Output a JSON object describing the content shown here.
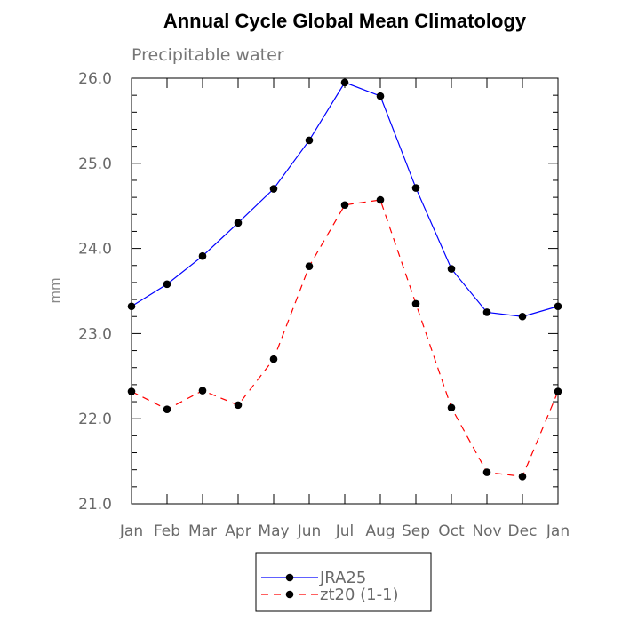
{
  "chart_data": {
    "type": "line",
    "title": "Annual Cycle Global Mean Climatology",
    "subtitle": "Precipitable water",
    "xlabel": "",
    "ylabel": "mm",
    "categories": [
      "Jan",
      "Feb",
      "Mar",
      "Apr",
      "May",
      "Jun",
      "Jul",
      "Aug",
      "Sep",
      "Oct",
      "Nov",
      "Dec",
      "Jan"
    ],
    "ylim": [
      21.0,
      26.0
    ],
    "yticks": [
      21.0,
      22.0,
      23.0,
      24.0,
      25.0,
      26.0
    ],
    "ytick_labels": [
      "21.0",
      "22.0",
      "23.0",
      "24.0",
      "25.0",
      "26.0"
    ],
    "grid": false,
    "legend_position": "bottom-center",
    "series": [
      {
        "name": "JRA25",
        "color": "#0000ff",
        "line_style": "solid",
        "marker": "filled-circle",
        "values": [
          23.32,
          23.58,
          23.91,
          24.3,
          24.7,
          25.27,
          25.95,
          25.79,
          24.71,
          23.76,
          23.25,
          23.2,
          23.32
        ]
      },
      {
        "name": "zt20 (1-1)",
        "color": "#ff0000",
        "line_style": "dashed",
        "marker": "filled-circle",
        "values": [
          22.32,
          22.11,
          22.33,
          22.16,
          22.7,
          23.79,
          24.51,
          24.57,
          23.35,
          22.13,
          21.37,
          21.32,
          22.32
        ]
      }
    ]
  }
}
